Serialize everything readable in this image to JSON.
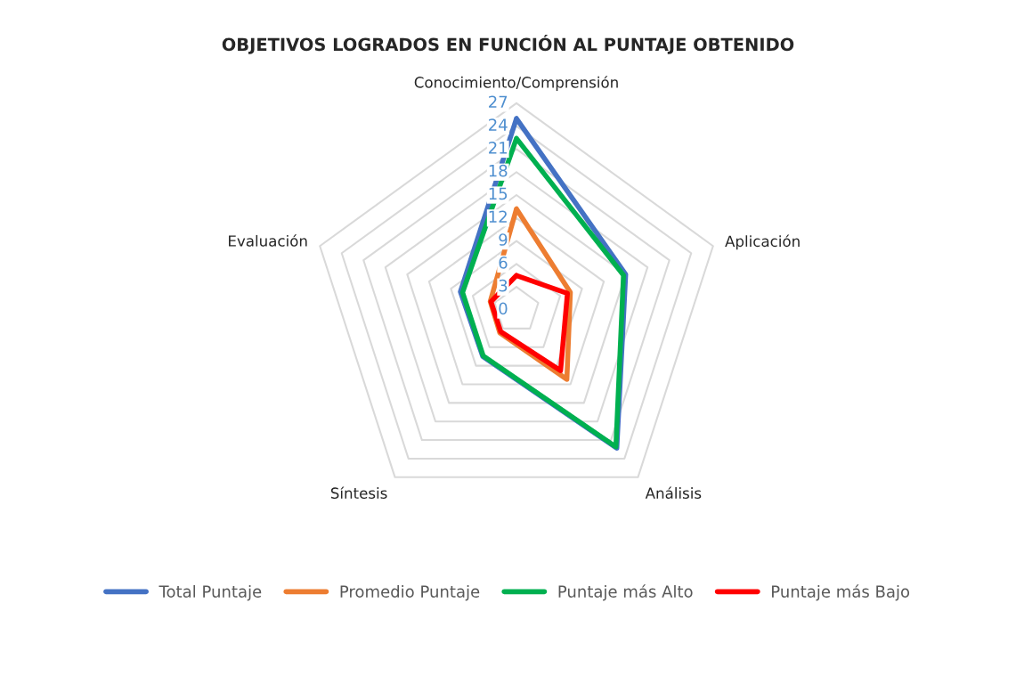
{
  "chart_data": {
    "type": "radar",
    "title": "OBJETIVOS LOGRADOS EN FUNCIÓN AL PUNTAJE OBTENIDO",
    "categories": [
      "Conocimiento/Comprensión",
      "Aplicación",
      "Análisis",
      "Síntesis",
      "Evaluación"
    ],
    "ylim": [
      0,
      27
    ],
    "yticks": [
      0,
      3,
      6,
      9,
      12,
      15,
      18,
      21,
      24,
      27
    ],
    "grid": true,
    "legend": "bottom",
    "marker": "none",
    "line_style": "solid",
    "series": [
      {
        "name": "Total Puntaje",
        "color": "#4472c4",
        "values": [
          25,
          15,
          22.3,
          7.5,
          7.7
        ]
      },
      {
        "name": "Promedio Puntaje",
        "color": "#ed7d31",
        "values": [
          13.2,
          7.4,
          11.2,
          3.7,
          3.6
        ]
      },
      {
        "name": "Puntaje más Alto",
        "color": "#00b050",
        "values": [
          22.4,
          14.7,
          22.1,
          7.4,
          7.4
        ]
      },
      {
        "name": "Puntaje más Bajo",
        "color": "#ff0000",
        "values": [
          4.5,
          7,
          9.8,
          3.5,
          3.5
        ]
      }
    ]
  }
}
